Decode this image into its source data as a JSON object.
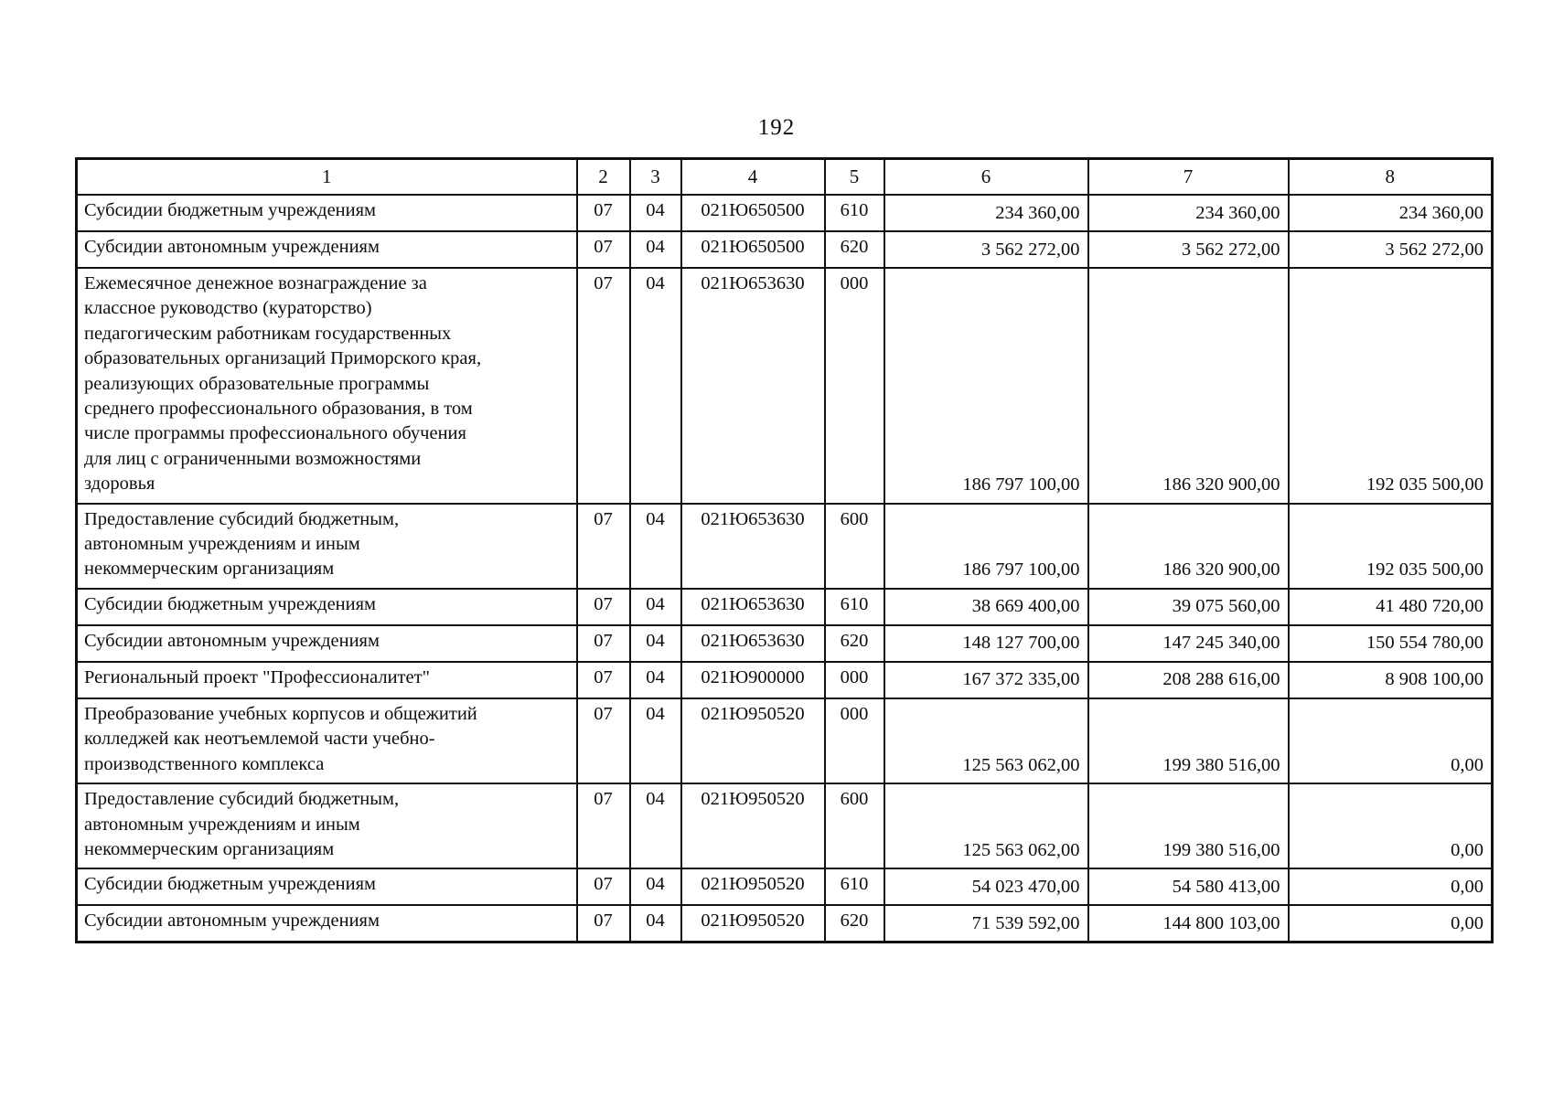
{
  "page": {
    "number": "192"
  },
  "table": {
    "headers": [
      "1",
      "2",
      "3",
      "4",
      "5",
      "6",
      "7",
      "8"
    ],
    "rows": [
      {
        "name": "Субсидии бюджетным учреждениям",
        "col2": "07",
        "col3": "04",
        "col4": "021Ю650500",
        "col5": "610",
        "col6": "234 360,00",
        "col7": "234 360,00",
        "col8": "234 360,00"
      },
      {
        "name": "Субсидии автономным учреждениям",
        "col2": "07",
        "col3": "04",
        "col4": "021Ю650500",
        "col5": "620",
        "col6": "3 562 272,00",
        "col7": "3 562 272,00",
        "col8": "3 562 272,00"
      },
      {
        "name": "Ежемесячное денежное вознаграждение за\nклассное руководство (кураторство)\nпедагогическим работникам государственных\nобразовательных организаций Приморского края,\nреализующих образовательные программы\nсреднего профессионального образования, в том\nчисле программы профессионального обучения\nдля лиц с ограниченными возможностями\nздоровья",
        "col2": "07",
        "col3": "04",
        "col4": "021Ю653630",
        "col5": "000",
        "col6": "186 797 100,00",
        "col7": "186 320 900,00",
        "col8": "192 035 500,00"
      },
      {
        "name": "Предоставление субсидий бюджетным,\nавтономным учреждениям и иным\nнекоммерческим организациям",
        "col2": "07",
        "col3": "04",
        "col4": "021Ю653630",
        "col5": "600",
        "col6": "186 797 100,00",
        "col7": "186 320 900,00",
        "col8": "192 035 500,00"
      },
      {
        "name": "Субсидии бюджетным учреждениям",
        "col2": "07",
        "col3": "04",
        "col4": "021Ю653630",
        "col5": "610",
        "col6": "38 669 400,00",
        "col7": "39 075 560,00",
        "col8": "41 480 720,00"
      },
      {
        "name": "Субсидии автономным учреждениям",
        "col2": "07",
        "col3": "04",
        "col4": "021Ю653630",
        "col5": "620",
        "col6": "148 127 700,00",
        "col7": "147 245 340,00",
        "col8": "150 554 780,00"
      },
      {
        "name": "Региональный проект \"Профессионалитет\"",
        "col2": "07",
        "col3": "04",
        "col4": "021Ю900000",
        "col5": "000",
        "col6": "167 372 335,00",
        "col7": "208 288 616,00",
        "col8": "8 908 100,00"
      },
      {
        "name": "Преобразование учебных корпусов и общежитий\nколледжей как неотъемлемой части учебно-\nпроизводственного комплекса",
        "col2": "07",
        "col3": "04",
        "col4": "021Ю950520",
        "col5": "000",
        "col6": "125 563 062,00",
        "col7": "199 380 516,00",
        "col8": "0,00"
      },
      {
        "name": "Предоставление субсидий бюджетным,\nавтономным учреждениям и иным\nнекоммерческим организациям",
        "col2": "07",
        "col3": "04",
        "col4": "021Ю950520",
        "col5": "600",
        "col6": "125 563 062,00",
        "col7": "199 380 516,00",
        "col8": "0,00"
      },
      {
        "name": "Субсидии бюджетным учреждениям",
        "col2": "07",
        "col3": "04",
        "col4": "021Ю950520",
        "col5": "610",
        "col6": "54 023 470,00",
        "col7": "54 580 413,00",
        "col8": "0,00"
      },
      {
        "name": "Субсидии автономным учреждениям",
        "col2": "07",
        "col3": "04",
        "col4": "021Ю950520",
        "col5": "620",
        "col6": "71 539 592,00",
        "col7": "144 800 103,00",
        "col8": "0,00"
      }
    ]
  }
}
